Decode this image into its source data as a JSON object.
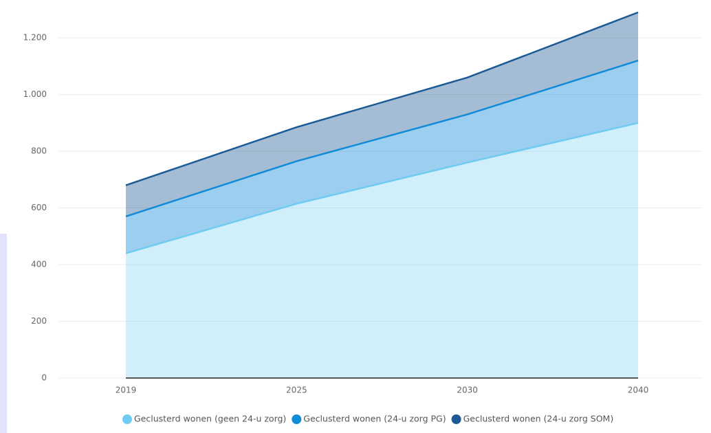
{
  "chart_data": {
    "type": "stacked_area",
    "categories": [
      "2019",
      "2025",
      "2030",
      "2040"
    ],
    "series": [
      {
        "name": "Geclusterd wonen (geen 24-u zorg)",
        "color": "#6fcbf2",
        "values": [
          440,
          615,
          760,
          900
        ]
      },
      {
        "name": "Geclusterd wonen (24-u zorg PG)",
        "color": "#118ad8",
        "values": [
          130,
          150,
          170,
          220
        ]
      },
      {
        "name": "Geclusterd wonen (24-u zorg SOM)",
        "color": "#1b5a94",
        "values": [
          110,
          120,
          130,
          170
        ]
      }
    ],
    "ylim": [
      0,
      1290
    ],
    "yticks": [
      0,
      200,
      400,
      600,
      800,
      {
        "value": 1000,
        "label": "1.000"
      },
      {
        "value": 1200,
        "label": "1.200"
      }
    ],
    "grid": true,
    "legend": "bottom"
  }
}
